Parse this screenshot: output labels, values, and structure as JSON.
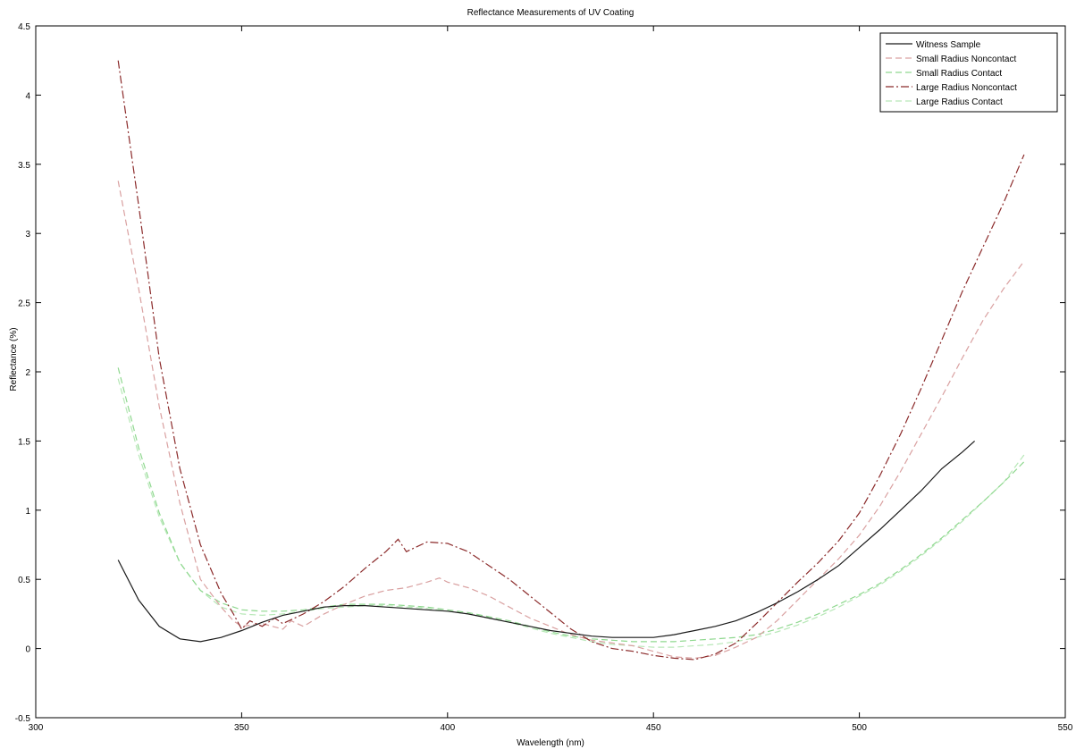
{
  "chart_data": {
    "type": "line",
    "title": "Reflectance Measurements of UV Coating",
    "xlabel": "Wavelength (nm)",
    "ylabel": "Reflectance (%)",
    "xlim": [
      300,
      550
    ],
    "ylim": [
      -0.5,
      4.5
    ],
    "x_ticks": [
      300,
      350,
      400,
      450,
      500,
      550
    ],
    "y_ticks": [
      -0.5,
      0,
      0.5,
      1,
      1.5,
      2,
      2.5,
      3,
      3.5,
      4,
      4.5
    ],
    "grid": false,
    "legend_position": "top-right",
    "series": [
      {
        "name": "Witness Sample",
        "color": "#1a1a1a",
        "dash": "solid",
        "points": [
          [
            320,
            0.64
          ],
          [
            325,
            0.35
          ],
          [
            330,
            0.16
          ],
          [
            335,
            0.07
          ],
          [
            340,
            0.05
          ],
          [
            345,
            0.08
          ],
          [
            350,
            0.13
          ],
          [
            355,
            0.19
          ],
          [
            360,
            0.24
          ],
          [
            365,
            0.27
          ],
          [
            370,
            0.3
          ],
          [
            375,
            0.31
          ],
          [
            380,
            0.31
          ],
          [
            385,
            0.3
          ],
          [
            390,
            0.29
          ],
          [
            395,
            0.28
          ],
          [
            400,
            0.27
          ],
          [
            405,
            0.25
          ],
          [
            410,
            0.22
          ],
          [
            415,
            0.19
          ],
          [
            420,
            0.16
          ],
          [
            425,
            0.13
          ],
          [
            430,
            0.11
          ],
          [
            435,
            0.09
          ],
          [
            440,
            0.08
          ],
          [
            445,
            0.08
          ],
          [
            450,
            0.08
          ],
          [
            455,
            0.1
          ],
          [
            460,
            0.13
          ],
          [
            465,
            0.16
          ],
          [
            470,
            0.2
          ],
          [
            475,
            0.26
          ],
          [
            480,
            0.33
          ],
          [
            485,
            0.41
          ],
          [
            490,
            0.5
          ],
          [
            495,
            0.6
          ],
          [
            500,
            0.73
          ],
          [
            505,
            0.86
          ],
          [
            510,
            1.0
          ],
          [
            515,
            1.14
          ],
          [
            520,
            1.3
          ],
          [
            525,
            1.42
          ],
          [
            528,
            1.5
          ]
        ]
      },
      {
        "name": "Small Radius Noncontact",
        "color": "#d9a0a0",
        "dash": "dashed",
        "points": [
          [
            320,
            3.38
          ],
          [
            325,
            2.6
          ],
          [
            330,
            1.75
          ],
          [
            335,
            1.05
          ],
          [
            340,
            0.5
          ],
          [
            345,
            0.3
          ],
          [
            348,
            0.2
          ],
          [
            350,
            0.16
          ],
          [
            355,
            0.18
          ],
          [
            360,
            0.14
          ],
          [
            362,
            0.2
          ],
          [
            365,
            0.16
          ],
          [
            370,
            0.25
          ],
          [
            375,
            0.32
          ],
          [
            380,
            0.38
          ],
          [
            385,
            0.42
          ],
          [
            390,
            0.44
          ],
          [
            395,
            0.48
          ],
          [
            398,
            0.51
          ],
          [
            400,
            0.48
          ],
          [
            405,
            0.44
          ],
          [
            410,
            0.38
          ],
          [
            415,
            0.3
          ],
          [
            420,
            0.22
          ],
          [
            425,
            0.16
          ],
          [
            430,
            0.1
          ],
          [
            435,
            0.06
          ],
          [
            440,
            0.04
          ],
          [
            445,
            0.02
          ],
          [
            450,
            -0.02
          ],
          [
            455,
            -0.06
          ],
          [
            460,
            -0.07
          ],
          [
            465,
            -0.05
          ],
          [
            470,
            0.01
          ],
          [
            475,
            0.08
          ],
          [
            480,
            0.2
          ],
          [
            485,
            0.35
          ],
          [
            490,
            0.5
          ],
          [
            495,
            0.65
          ],
          [
            500,
            0.82
          ],
          [
            505,
            1.03
          ],
          [
            510,
            1.28
          ],
          [
            515,
            1.55
          ],
          [
            520,
            1.82
          ],
          [
            525,
            2.1
          ],
          [
            530,
            2.37
          ],
          [
            535,
            2.6
          ],
          [
            540,
            2.8
          ]
        ]
      },
      {
        "name": "Small Radius Contact",
        "color": "#8fd88f",
        "dash": "dashed",
        "points": [
          [
            320,
            2.03
          ],
          [
            325,
            1.45
          ],
          [
            330,
            0.98
          ],
          [
            335,
            0.62
          ],
          [
            340,
            0.42
          ],
          [
            345,
            0.33
          ],
          [
            350,
            0.28
          ],
          [
            355,
            0.27
          ],
          [
            360,
            0.27
          ],
          [
            365,
            0.28
          ],
          [
            370,
            0.3
          ],
          [
            375,
            0.32
          ],
          [
            380,
            0.32
          ],
          [
            385,
            0.32
          ],
          [
            390,
            0.31
          ],
          [
            395,
            0.3
          ],
          [
            400,
            0.28
          ],
          [
            405,
            0.26
          ],
          [
            410,
            0.23
          ],
          [
            415,
            0.2
          ],
          [
            420,
            0.16
          ],
          [
            425,
            0.12
          ],
          [
            430,
            0.09
          ],
          [
            435,
            0.07
          ],
          [
            440,
            0.06
          ],
          [
            445,
            0.05
          ],
          [
            450,
            0.05
          ],
          [
            455,
            0.05
          ],
          [
            460,
            0.06
          ],
          [
            465,
            0.07
          ],
          [
            470,
            0.08
          ],
          [
            475,
            0.1
          ],
          [
            480,
            0.14
          ],
          [
            485,
            0.19
          ],
          [
            490,
            0.25
          ],
          [
            495,
            0.32
          ],
          [
            500,
            0.39
          ],
          [
            505,
            0.47
          ],
          [
            510,
            0.57
          ],
          [
            515,
            0.68
          ],
          [
            520,
            0.8
          ],
          [
            525,
            0.93
          ],
          [
            530,
            1.06
          ],
          [
            535,
            1.2
          ],
          [
            540,
            1.35
          ]
        ]
      },
      {
        "name": "Large Radius Noncontact",
        "color": "#8b2a2a",
        "dash": "dashdot",
        "points": [
          [
            320,
            4.25
          ],
          [
            325,
            3.2
          ],
          [
            330,
            2.1
          ],
          [
            335,
            1.3
          ],
          [
            340,
            0.75
          ],
          [
            345,
            0.4
          ],
          [
            348,
            0.25
          ],
          [
            350,
            0.14
          ],
          [
            352,
            0.2
          ],
          [
            355,
            0.16
          ],
          [
            358,
            0.22
          ],
          [
            360,
            0.18
          ],
          [
            365,
            0.25
          ],
          [
            370,
            0.34
          ],
          [
            375,
            0.45
          ],
          [
            380,
            0.58
          ],
          [
            385,
            0.7
          ],
          [
            388,
            0.79
          ],
          [
            390,
            0.7
          ],
          [
            395,
            0.77
          ],
          [
            400,
            0.76
          ],
          [
            405,
            0.7
          ],
          [
            410,
            0.6
          ],
          [
            415,
            0.5
          ],
          [
            420,
            0.38
          ],
          [
            425,
            0.26
          ],
          [
            430,
            0.14
          ],
          [
            435,
            0.05
          ],
          [
            440,
            0.0
          ],
          [
            445,
            -0.02
          ],
          [
            450,
            -0.05
          ],
          [
            455,
            -0.07
          ],
          [
            460,
            -0.08
          ],
          [
            465,
            -0.04
          ],
          [
            470,
            0.04
          ],
          [
            475,
            0.18
          ],
          [
            480,
            0.33
          ],
          [
            485,
            0.48
          ],
          [
            490,
            0.62
          ],
          [
            495,
            0.78
          ],
          [
            500,
            0.98
          ],
          [
            505,
            1.25
          ],
          [
            510,
            1.55
          ],
          [
            515,
            1.88
          ],
          [
            520,
            2.23
          ],
          [
            525,
            2.58
          ],
          [
            530,
            2.9
          ],
          [
            535,
            3.22
          ],
          [
            540,
            3.57
          ]
        ]
      },
      {
        "name": "Large Radius Contact",
        "color": "#b8e8b8",
        "dash": "dashed",
        "points": [
          [
            320,
            1.95
          ],
          [
            325,
            1.4
          ],
          [
            330,
            0.95
          ],
          [
            335,
            0.62
          ],
          [
            340,
            0.42
          ],
          [
            345,
            0.3
          ],
          [
            350,
            0.25
          ],
          [
            355,
            0.24
          ],
          [
            360,
            0.25
          ],
          [
            365,
            0.27
          ],
          [
            370,
            0.29
          ],
          [
            375,
            0.3
          ],
          [
            380,
            0.31
          ],
          [
            385,
            0.31
          ],
          [
            390,
            0.3
          ],
          [
            395,
            0.29
          ],
          [
            400,
            0.27
          ],
          [
            405,
            0.25
          ],
          [
            410,
            0.22
          ],
          [
            415,
            0.19
          ],
          [
            420,
            0.15
          ],
          [
            425,
            0.11
          ],
          [
            430,
            0.08
          ],
          [
            435,
            0.05
          ],
          [
            440,
            0.03
          ],
          [
            445,
            0.02
          ],
          [
            450,
            0.01
          ],
          [
            455,
            0.01
          ],
          [
            460,
            0.02
          ],
          [
            465,
            0.03
          ],
          [
            470,
            0.05
          ],
          [
            475,
            0.08
          ],
          [
            480,
            0.12
          ],
          [
            485,
            0.17
          ],
          [
            490,
            0.23
          ],
          [
            495,
            0.3
          ],
          [
            500,
            0.38
          ],
          [
            505,
            0.46
          ],
          [
            510,
            0.56
          ],
          [
            515,
            0.67
          ],
          [
            520,
            0.79
          ],
          [
            525,
            0.92
          ],
          [
            530,
            1.06
          ],
          [
            535,
            1.2
          ],
          [
            540,
            1.4
          ]
        ]
      }
    ]
  }
}
